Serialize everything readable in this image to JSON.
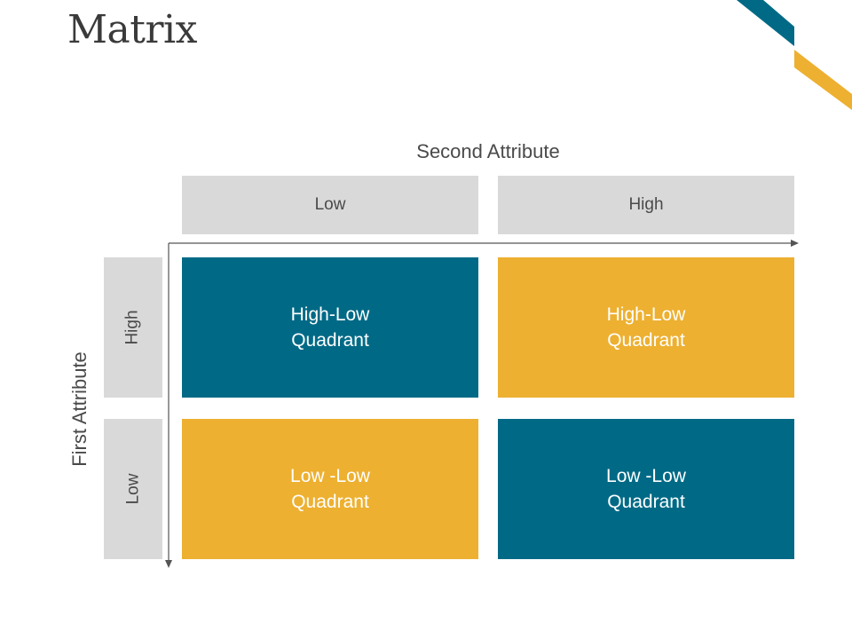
{
  "title": "Matrix",
  "colors": {
    "teal": "#006a86",
    "gold": "#edb031",
    "header_gray": "#d9d9d9",
    "axis_line": "#555555"
  },
  "axes": {
    "second_attribute": "Second Attribute",
    "first_attribute": "First Attribute"
  },
  "column_headers": [
    "Low",
    "High"
  ],
  "row_headers": [
    "High",
    "Low"
  ],
  "quadrants": [
    {
      "label": "High-Low Quadrant",
      "color": "#006a86"
    },
    {
      "label": "High-Low Quadrant",
      "color": "#edb031"
    },
    {
      "label": "Low -Low Quadrant",
      "color": "#edb031"
    },
    {
      "label": "Low -Low Quadrant",
      "color": "#006a86"
    }
  ]
}
